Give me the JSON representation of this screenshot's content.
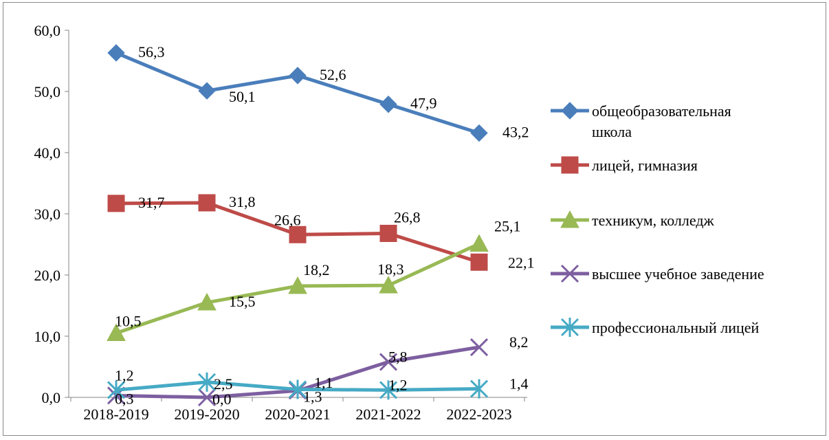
{
  "chart_data": {
    "type": "line",
    "title": "",
    "xlabel": "",
    "ylabel": "",
    "categories": [
      "2018-2019",
      "2019-2020",
      "2020-2021",
      "2021-2022",
      "2022-2023"
    ],
    "ylim": [
      0,
      60
    ],
    "yticks": [
      0,
      10,
      20,
      30,
      40,
      50,
      60
    ],
    "ytick_labels": [
      "0,0",
      "10,0",
      "20,0",
      "30,0",
      "40,0",
      "50,0",
      "60,0"
    ],
    "grid": false,
    "legend_position": "right",
    "series": [
      {
        "name_lines": [
          "общеобразовательная",
          "школа"
        ],
        "name": "общеобразовательная школа",
        "color": "#4a7ebb",
        "marker": "diamond",
        "values": [
          56.3,
          50.1,
          52.6,
          47.9,
          43.2
        ],
        "labels": [
          "56,3",
          "50,1",
          "52,6",
          "47,9",
          "43,2"
        ]
      },
      {
        "name_lines": [
          "лицей, гимназия"
        ],
        "name": "лицей, гимназия",
        "color": "#be4b48",
        "marker": "square",
        "values": [
          31.7,
          31.8,
          26.6,
          26.8,
          22.1
        ],
        "labels": [
          "31,7",
          "31,8",
          "26,6",
          "26,8",
          "22,1"
        ]
      },
      {
        "name_lines": [
          "техникум, колледж"
        ],
        "name": "техникум, колледж",
        "color": "#98b954",
        "marker": "triangle",
        "values": [
          10.5,
          15.5,
          18.2,
          18.3,
          25.1
        ],
        "labels": [
          "10,5",
          "15,5",
          "18,2",
          "18,3",
          "25,1"
        ]
      },
      {
        "name_lines": [
          "высшее учебное заведение"
        ],
        "name": "высшее учебное заведение",
        "color": "#7d5fa0",
        "marker": "x",
        "values": [
          0.3,
          0.0,
          1.1,
          5.8,
          8.2
        ],
        "labels": [
          "0,3",
          "0,0",
          "1,1",
          "5,8",
          "8,2"
        ]
      },
      {
        "name_lines": [
          "профессиональный лицей"
        ],
        "name": "профессиональный лицей",
        "color": "#46aac5",
        "marker": "star",
        "values": [
          1.2,
          2.5,
          1.3,
          1.2,
          1.4
        ],
        "labels": [
          "1,2",
          "2,5",
          "1,3",
          "1,2",
          "1,4"
        ]
      }
    ]
  }
}
